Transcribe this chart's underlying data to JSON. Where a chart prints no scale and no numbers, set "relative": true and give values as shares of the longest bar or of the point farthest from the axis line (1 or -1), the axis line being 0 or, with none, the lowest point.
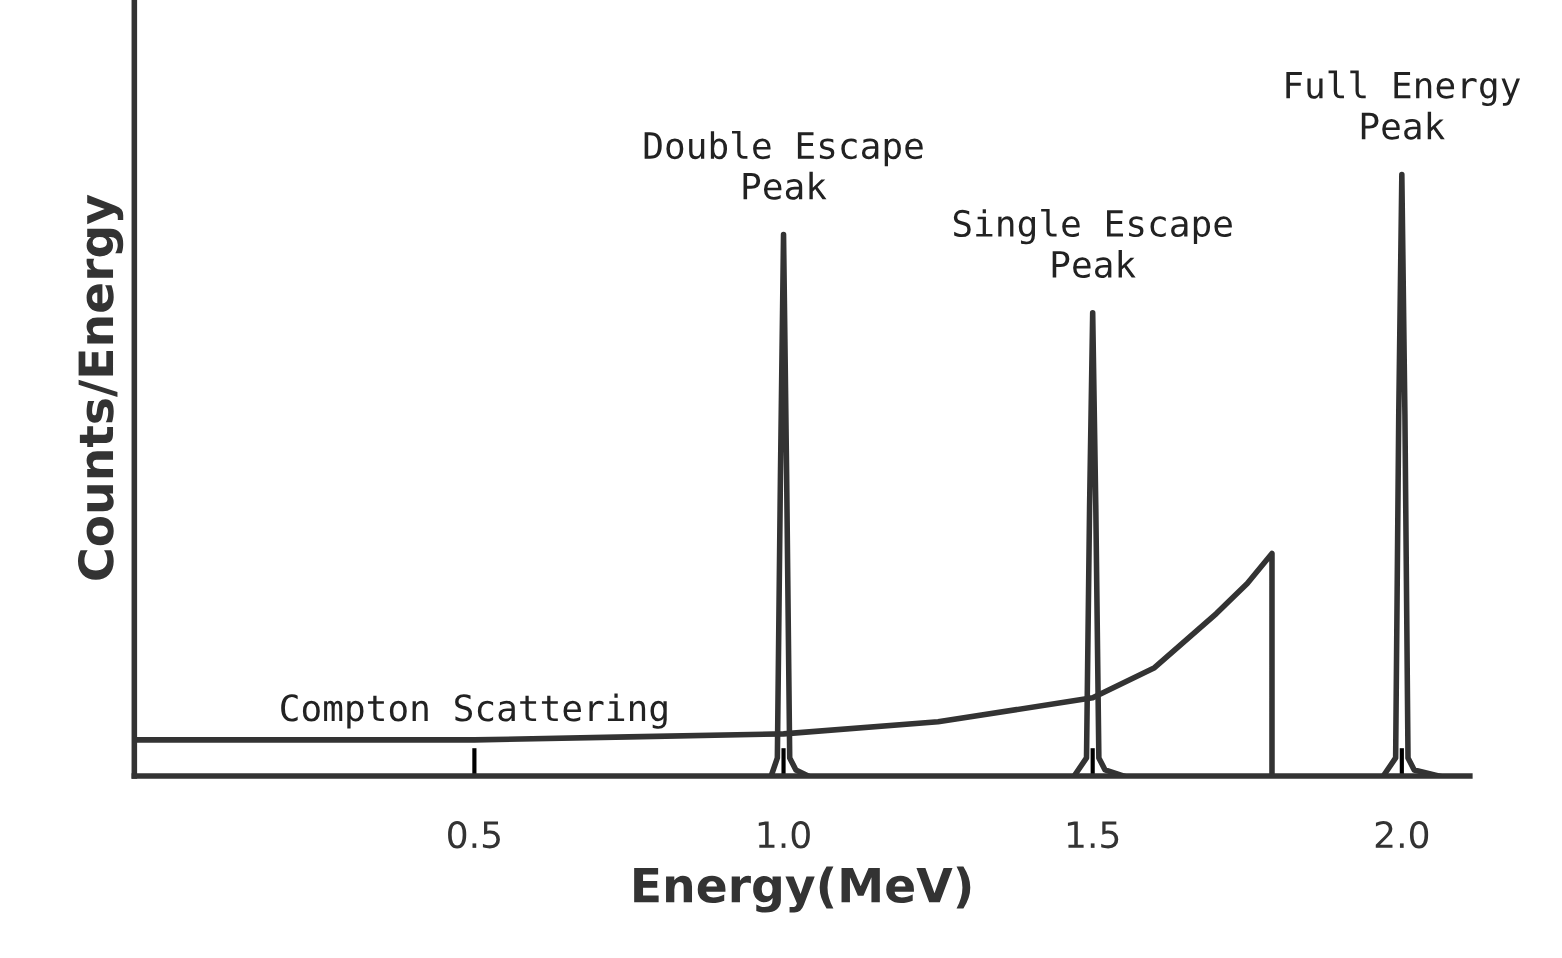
{
  "chart_data": {
    "type": "line",
    "xlabel": "Energy(MeV)",
    "ylabel": "Counts/Energy",
    "relative": true,
    "xlim": [
      -0.05,
      2.11
    ],
    "xticks": [
      0.5,
      {
        "value": 1,
        "label": "1.0"
      },
      1.5,
      {
        "value": 2,
        "label": "2.0"
      }
    ],
    "series": [
      {
        "color": "#333333",
        "x": [
          -0.05,
          0.25,
          0.5,
          0.75,
          1.0,
          1.25,
          1.5,
          1.6,
          1.7,
          1.75,
          1.79,
          1.79
        ],
        "values": [
          0.06,
          0.06,
          0.06,
          0.065,
          0.07,
          0.09,
          0.13,
          0.18,
          0.27,
          0.32,
          0.37,
          0
        ]
      },
      {
        "color": "#333333",
        "x": [
          0.98,
          0.99,
          0.995,
          1.0,
          1.005,
          1.01,
          1.02,
          1.04
        ],
        "values": [
          0,
          0.03,
          0.5,
          0.9,
          0.5,
          0.03,
          0.01,
          0
        ]
      },
      {
        "color": "#333333",
        "x": [
          1.47,
          1.49,
          1.495,
          1.5,
          1.505,
          1.51,
          1.52,
          1.55
        ],
        "values": [
          0,
          0.03,
          0.45,
          0.77,
          0.45,
          0.03,
          0.01,
          0
        ]
      },
      {
        "color": "#333333",
        "x": [
          1.97,
          1.99,
          1.995,
          2.0,
          2.005,
          2.01,
          2.02,
          2.06
        ],
        "values": [
          0,
          0.03,
          0.6,
          1,
          0.6,
          0.03,
          0.01,
          0
        ]
      }
    ],
    "annotations": [
      {
        "text": "Double Escape\nPeak",
        "x": 1.0,
        "y": 0.9
      },
      {
        "text": "Single Escape\nPeak",
        "x": 1.5,
        "y": 0.77
      },
      {
        "text": "Full Energy\nPeak",
        "x": 2.0,
        "y": 1
      },
      {
        "text": "Compton Scattering",
        "x": 0.5,
        "y": 0.06
      }
    ]
  }
}
